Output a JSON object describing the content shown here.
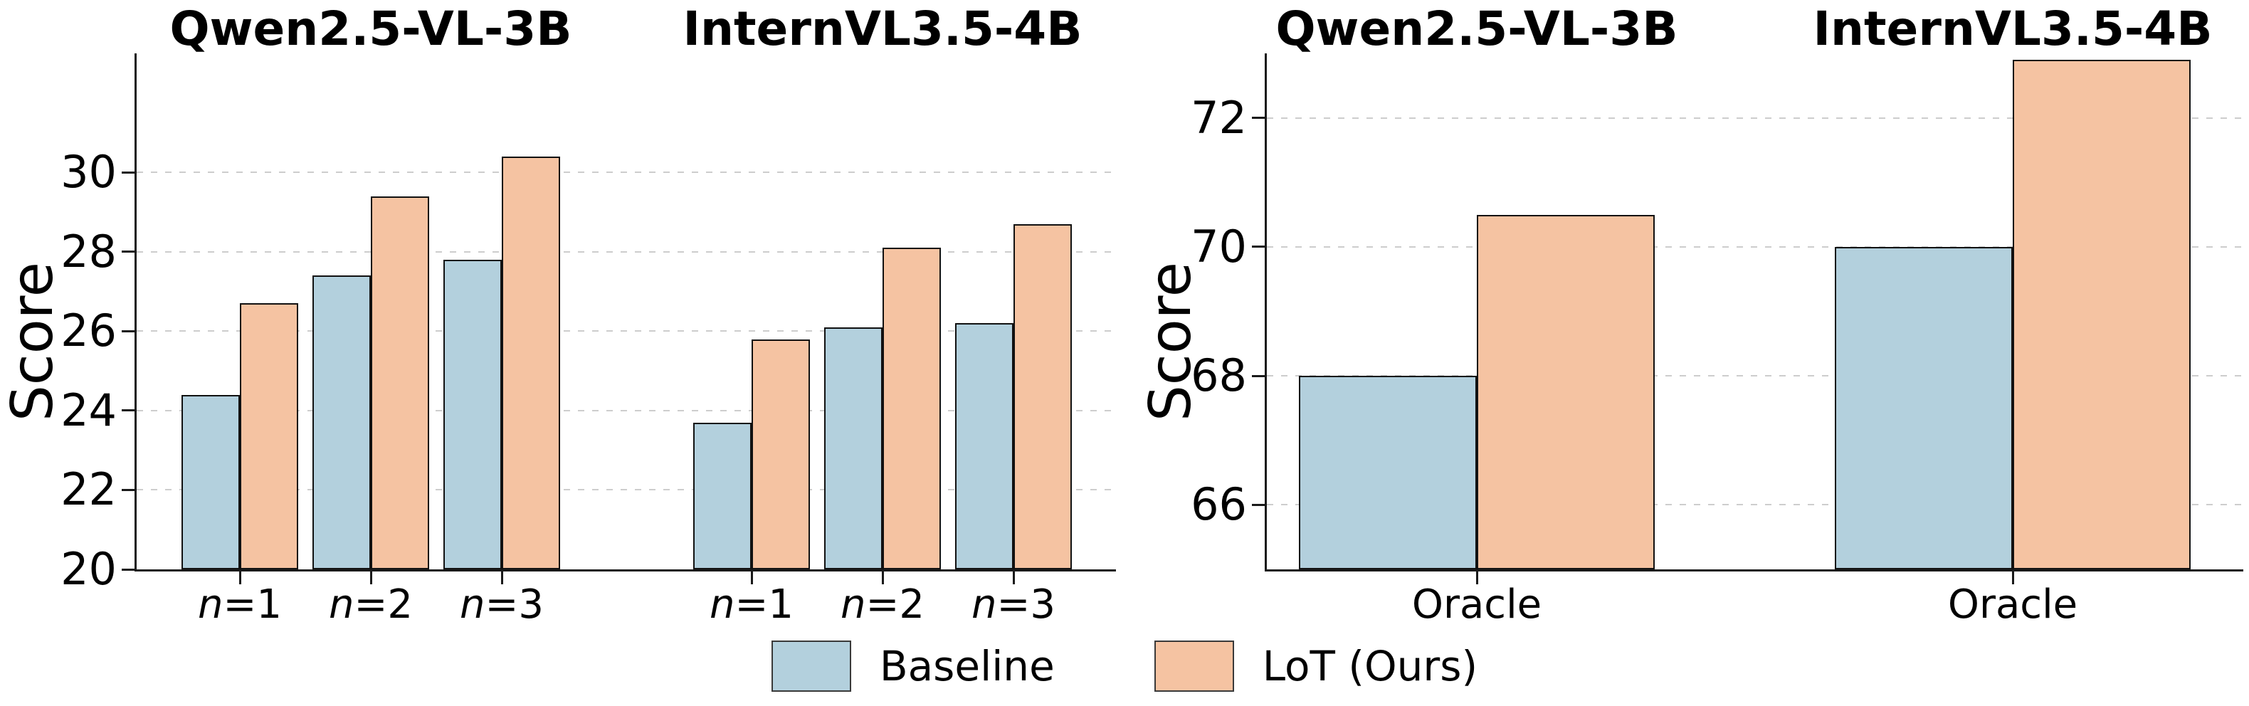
{
  "figure": {
    "legend": {
      "entries": [
        {
          "name": "baseline",
          "label": "Baseline",
          "color": "#b3d0dd"
        },
        {
          "name": "lot",
          "label": "LoT (Ours)",
          "color": "#f5c3a2"
        }
      ]
    }
  },
  "colors": {
    "baseline_fill": "#b3d0dd",
    "lot_fill": "#f5c3a2",
    "bar_edge": "#111111",
    "grid": "#cdcdcd",
    "axis": "#1a1a1a"
  },
  "chart_data": [
    {
      "type": "bar",
      "ylabel": "Score",
      "ylim": [
        20,
        33
      ],
      "yticks": [
        20,
        22,
        24,
        26,
        28,
        30
      ],
      "grid": "horizontal-dashed",
      "legend_position": "figure-bottom-center",
      "groups": [
        {
          "title": "Qwen2.5-VL-3B",
          "categories": [
            "n=1",
            "n=2",
            "n=3"
          ],
          "series": [
            {
              "name": "Baseline",
              "values": [
                24.4,
                27.4,
                27.8
              ]
            },
            {
              "name": "LoT (Ours)",
              "values": [
                26.7,
                29.4,
                30.4
              ]
            }
          ]
        },
        {
          "title": "InternVL3.5-4B",
          "categories": [
            "n=1",
            "n=2",
            "n=3"
          ],
          "series": [
            {
              "name": "Baseline",
              "values": [
                23.7,
                26.1,
                26.2
              ]
            },
            {
              "name": "LoT (Ours)",
              "values": [
                25.8,
                28.1,
                28.7
              ]
            }
          ]
        }
      ]
    },
    {
      "type": "bar",
      "ylabel": "Score",
      "ylim": [
        65,
        73
      ],
      "yticks": [
        66,
        68,
        70,
        72
      ],
      "grid": "horizontal-dashed",
      "legend_position": "figure-bottom-center",
      "groups": [
        {
          "title": "Qwen2.5-VL-3B",
          "categories": [
            "Oracle"
          ],
          "series": [
            {
              "name": "Baseline",
              "values": [
                68.0
              ]
            },
            {
              "name": "LoT (Ours)",
              "values": [
                70.5
              ]
            }
          ]
        },
        {
          "title": "InternVL3.5-4B",
          "categories": [
            "Oracle"
          ],
          "series": [
            {
              "name": "Baseline",
              "values": [
                70.0
              ]
            },
            {
              "name": "LoT (Ours)",
              "values": [
                72.9
              ]
            }
          ]
        }
      ]
    }
  ]
}
